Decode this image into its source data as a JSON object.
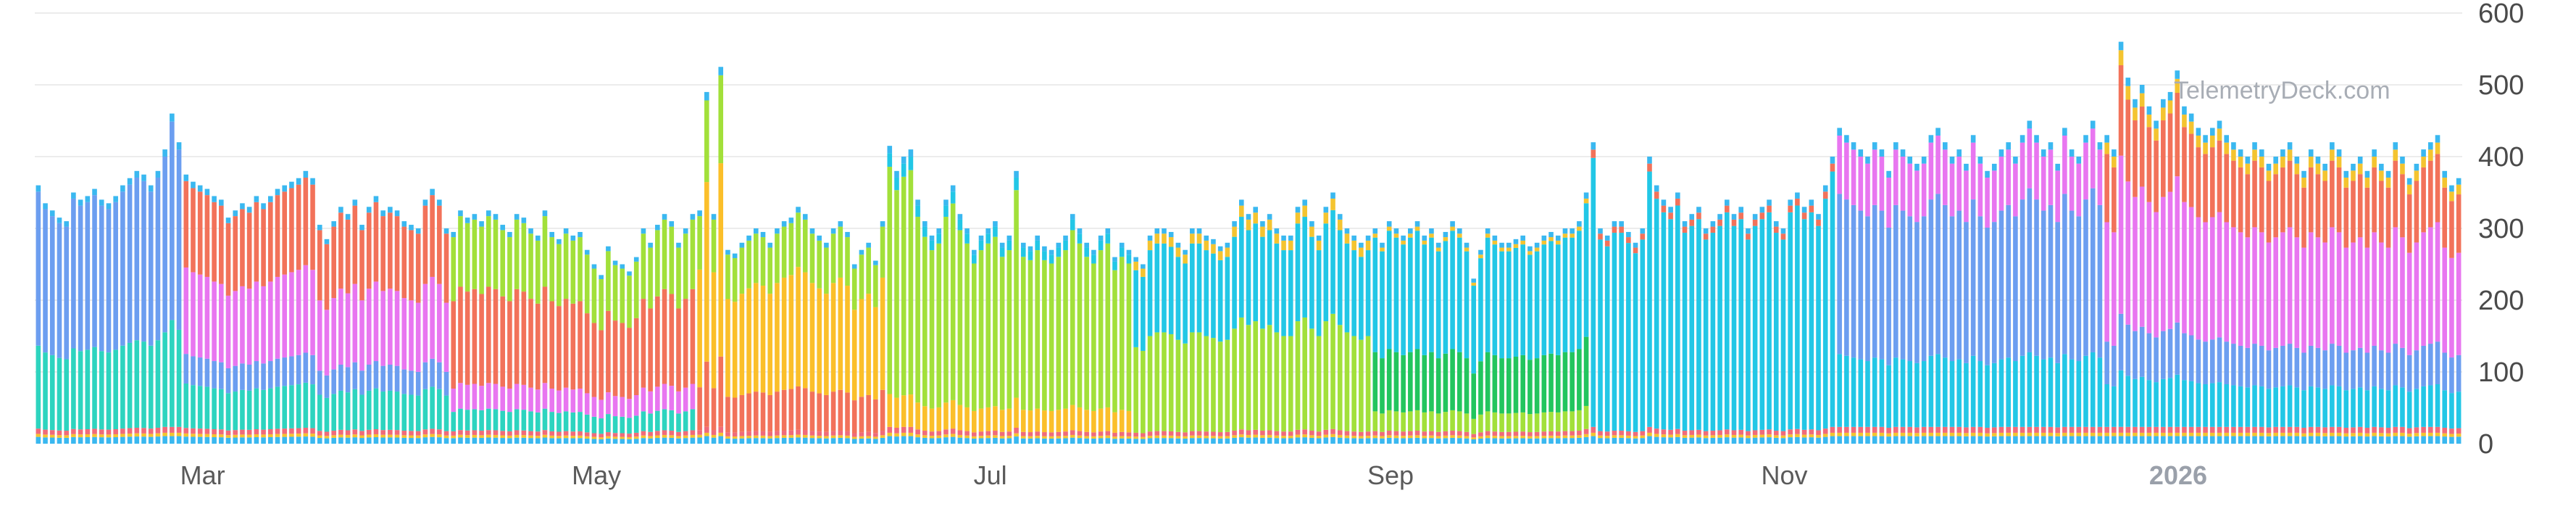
{
  "chart_data": {
    "type": "bar",
    "stacked": true,
    "grid": true,
    "ylim": [
      0,
      600
    ],
    "y_ticks": [
      "0",
      "100",
      "200",
      "300",
      "400",
      "500",
      "600"
    ],
    "x_ticks": [
      {
        "label": "Mar",
        "date": "2025-03-01",
        "year": false
      },
      {
        "label": "May",
        "date": "2025-05-01",
        "year": false
      },
      {
        "label": "Jul",
        "date": "2025-07-01",
        "year": false
      },
      {
        "label": "Sep",
        "date": "2025-09-01",
        "year": false
      },
      {
        "label": "Nov",
        "date": "2025-11-01",
        "year": false
      },
      {
        "label": "2026",
        "date": "2026-01-01",
        "year": true
      }
    ],
    "x_range": [
      "2025-02-03",
      "2026-02-14"
    ],
    "watermark": "TelemetryDeck.com",
    "series_colors": [
      "#3ab8f0",
      "#f4c430",
      "#f06b7a",
      "#e876f0",
      "#f2725a",
      "#6c9ef0",
      "#a2e03a",
      "#fbbf2a",
      "#2dd4bf",
      "#22c7e6",
      "#22c55e"
    ],
    "daily_totals": [
      360,
      335,
      325,
      315,
      310,
      350,
      340,
      345,
      355,
      340,
      335,
      345,
      360,
      370,
      380,
      375,
      360,
      380,
      410,
      460,
      420,
      375,
      365,
      360,
      355,
      345,
      340,
      315,
      325,
      335,
      330,
      345,
      335,
      345,
      355,
      360,
      365,
      370,
      380,
      370,
      305,
      285,
      310,
      330,
      320,
      340,
      305,
      330,
      345,
      325,
      330,
      325,
      310,
      305,
      300,
      340,
      355,
      340,
      300,
      295,
      325,
      315,
      320,
      310,
      325,
      320,
      305,
      295,
      320,
      315,
      300,
      290,
      325,
      295,
      285,
      300,
      290,
      295,
      270,
      250,
      235,
      275,
      255,
      250,
      240,
      260,
      300,
      280,
      305,
      320,
      310,
      280,
      300,
      320,
      325,
      490,
      320,
      525,
      270,
      265,
      280,
      290,
      300,
      295,
      280,
      300,
      310,
      315,
      330,
      320,
      300,
      290,
      280,
      300,
      310,
      295,
      250,
      270,
      280,
      255,
      310,
      415,
      380,
      400,
      410,
      340,
      310,
      290,
      300,
      340,
      360,
      320,
      300,
      270,
      290,
      300,
      310,
      280,
      290,
      380,
      280,
      275,
      290,
      275,
      270,
      280,
      290,
      320,
      300,
      280,
      270,
      290,
      300,
      260,
      280,
      270,
      260,
      250,
      290,
      300,
      300,
      295,
      280,
      270,
      300,
      300,
      290,
      285,
      275,
      280,
      310,
      340,
      320,
      330,
      310,
      320,
      300,
      290,
      290,
      330,
      340,
      310,
      290,
      330,
      350,
      320,
      300,
      290,
      280,
      290,
      300,
      280,
      310,
      300,
      290,
      300,
      310,
      290,
      300,
      280,
      295,
      310,
      300,
      280,
      230,
      270,
      300,
      290,
      280,
      280,
      285,
      290,
      275,
      280,
      290,
      295,
      290,
      300,
      300,
      310,
      350,
      420,
      300,
      290,
      310,
      310,
      295,
      280,
      300,
      400,
      360,
      340,
      330,
      350,
      310,
      320,
      330,
      300,
      310,
      320,
      340,
      320,
      330,
      300,
      320,
      330,
      340,
      310,
      300,
      340,
      350,
      330,
      340,
      320,
      360,
      400,
      440,
      430,
      420,
      410,
      400,
      420,
      410,
      380,
      420,
      410,
      400,
      390,
      400,
      430,
      440,
      420,
      400,
      410,
      390,
      430,
      400,
      380,
      390,
      410,
      420,
      400,
      430,
      450,
      430,
      410,
      420,
      390,
      440,
      410,
      400,
      430,
      450,
      420,
      430,
      410,
      560,
      510,
      480,
      500,
      470,
      450,
      480,
      490,
      520,
      470,
      460,
      440,
      430,
      440,
      450,
      430,
      420,
      410,
      400,
      420,
      410,
      390,
      400,
      410,
      420,
      400,
      380,
      410,
      400,
      390,
      420,
      410,
      380,
      390,
      400,
      380,
      410,
      390,
      380,
      420,
      400,
      370,
      390,
      410,
      420,
      430,
      380,
      360,
      370
    ]
  }
}
